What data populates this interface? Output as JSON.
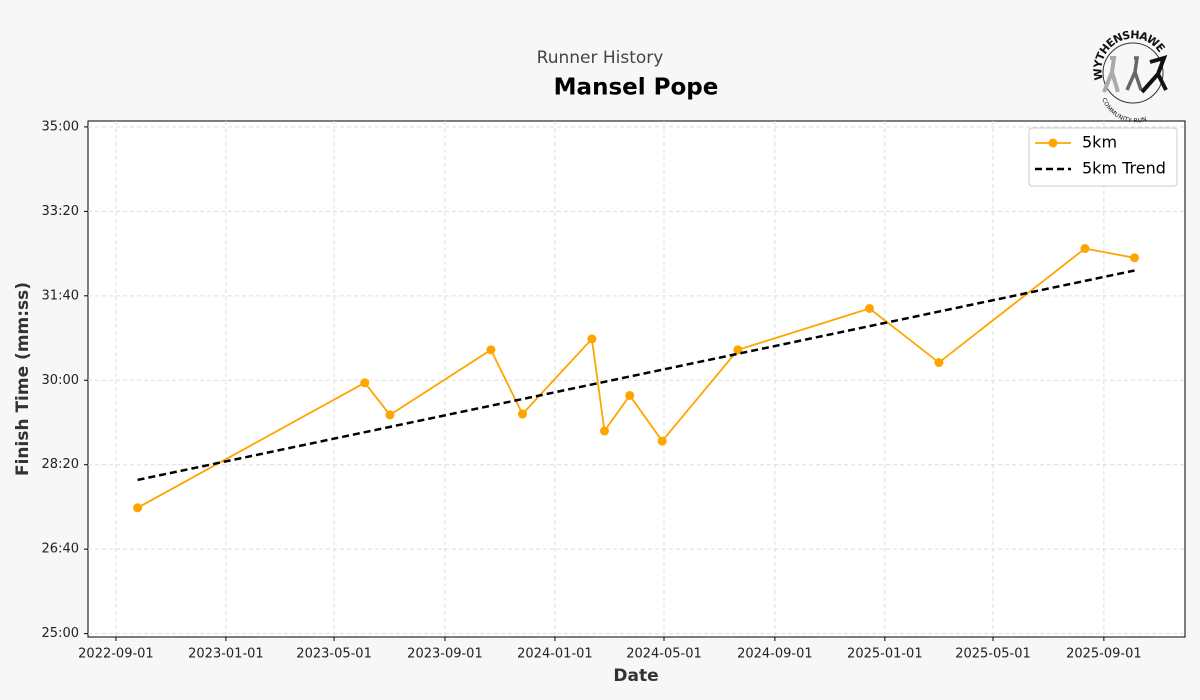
{
  "chart_data": {
    "type": "line",
    "subtitle": "Runner History",
    "title": "Mansel Pope",
    "logo": {
      "top": "WYTHENSHAWE",
      "bottom": "COMMUNITY RUN"
    },
    "xlabel": "Date",
    "ylabel": "Finish Time (mm:ss)",
    "xlim": [
      "2022-08-01",
      "2025-11-30"
    ],
    "xticks": [
      "2022-09-01",
      "2023-01-01",
      "2023-05-01",
      "2023-09-01",
      "2024-01-01",
      "2024-05-01",
      "2024-09-01",
      "2025-01-01",
      "2025-05-01",
      "2025-09-01"
    ],
    "ylim": [
      1496,
      2107
    ],
    "yticks": [
      {
        "value": 1500,
        "label": "25:00"
      },
      {
        "value": 1600,
        "label": "26:40"
      },
      {
        "value": 1700,
        "label": "28:20"
      },
      {
        "value": 1800,
        "label": "30:00"
      },
      {
        "value": 1900,
        "label": "31:40"
      },
      {
        "value": 2000,
        "label": "33:20"
      },
      {
        "value": 2100,
        "label": "35:00"
      }
    ],
    "grid": true,
    "legend": "upper right",
    "series": [
      {
        "name": "5km",
        "color": "#ffa500",
        "style": "solid",
        "markers": true,
        "x": [
          "2022-09-25",
          "2023-06-04",
          "2023-07-02",
          "2023-10-22",
          "2023-11-26",
          "2024-02-11",
          "2024-02-25",
          "2024-03-24",
          "2024-04-29",
          "2024-07-22",
          "2024-12-15",
          "2025-03-02",
          "2025-08-11",
          "2025-10-05"
        ],
        "values": [
          1649,
          1797,
          1759,
          1836,
          1760,
          1849,
          1740,
          1782,
          1728,
          1836,
          1885,
          1821,
          1956,
          1945
        ]
      },
      {
        "name": "5km Trend",
        "color": "#000000",
        "style": "dashed",
        "markers": false,
        "x": [
          "2022-09-25",
          "2025-10-05"
        ],
        "values": [
          1682,
          1930
        ]
      }
    ]
  }
}
